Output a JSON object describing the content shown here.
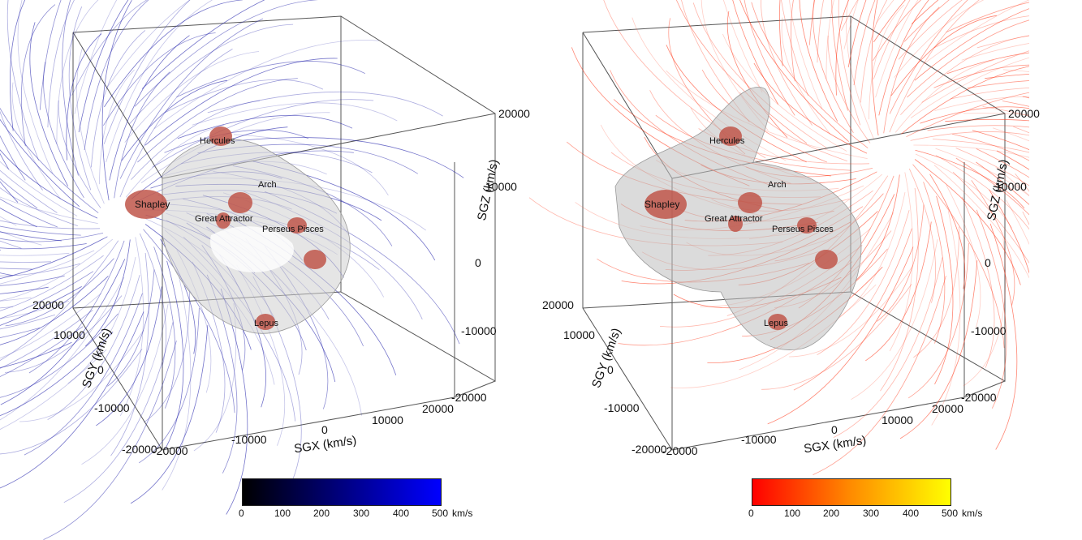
{
  "panels": [
    {
      "id": "left",
      "line_color": "#1a1aa8",
      "colorbar": {
        "gradient": [
          "#000000",
          "#0000ff"
        ],
        "ticks": [
          "0",
          "100",
          "200",
          "300",
          "400",
          "500"
        ],
        "unit": "km/s"
      }
    },
    {
      "id": "right",
      "line_color": "#ff3a1a",
      "colorbar": {
        "gradient": [
          "#ff0000",
          "#ff8c00",
          "#ffff00"
        ],
        "ticks": [
          "0",
          "100",
          "200",
          "300",
          "400",
          "500"
        ],
        "unit": "km/s"
      }
    }
  ],
  "structures": [
    "Shapley",
    "Hercules",
    "Arch",
    "Great Attractor",
    "Perseus Pisces",
    "Lepus"
  ],
  "axes": {
    "sgz_label": "SGZ (km/s)",
    "sgy_label": "SGY (km/s)",
    "sgx_label": "SGX (km/s)",
    "sgz_ticks": [
      "20000",
      "10000",
      "0",
      "-10000",
      "-20000"
    ],
    "sgy_ticks": [
      "20000",
      "10000",
      "0",
      "-10000",
      "-20000"
    ],
    "sgx_ticks": [
      "-20000",
      "-10000",
      "0",
      "10000",
      "20000"
    ]
  }
}
